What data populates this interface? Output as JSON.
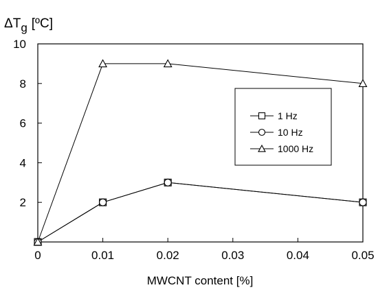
{
  "chart_data": {
    "type": "line",
    "xlabel": "MWCNT content [%]",
    "ylabel": {
      "delta": "ΔT",
      "sub": "g",
      "unit": "[ºC]"
    },
    "xlim": [
      0,
      0.05
    ],
    "ylim": [
      0,
      10
    ],
    "x_ticks": [
      {
        "value": 0,
        "label": "0"
      },
      {
        "value": 0.01,
        "label": "0.01"
      },
      {
        "value": 0.02,
        "label": "0.02"
      },
      {
        "value": 0.03,
        "label": "0.03"
      },
      {
        "value": 0.04,
        "label": "0.04"
      },
      {
        "value": 0.05,
        "label": "0.05"
      }
    ],
    "y_ticks": [
      {
        "value": 2,
        "label": "2"
      },
      {
        "value": 4,
        "label": "4"
      },
      {
        "value": 6,
        "label": "6"
      },
      {
        "value": 8,
        "label": "8"
      },
      {
        "value": 10,
        "label": "10"
      }
    ],
    "grid": false,
    "legend_position": "right",
    "x": [
      0,
      0.01,
      0.02,
      0.05
    ],
    "series": [
      {
        "name": "1 Hz",
        "marker": "square",
        "values": [
          0,
          2,
          3,
          2
        ]
      },
      {
        "name": "10 Hz",
        "marker": "circle",
        "values": [
          0,
          2,
          3,
          2
        ]
      },
      {
        "name": "1000 Hz",
        "marker": "triangle",
        "values": [
          0,
          9,
          9,
          8
        ]
      }
    ],
    "line_color": "#000000"
  }
}
